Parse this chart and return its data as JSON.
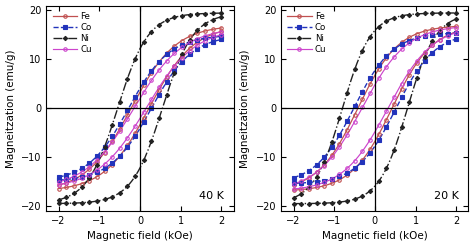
{
  "panel_labels": [
    "40 K",
    "20 K"
  ],
  "mat_order": [
    "Fe",
    "Co",
    "Ni",
    "Cu"
  ],
  "params": {
    "40 K": {
      "Fe": {
        "Hc": 0.22,
        "Ms": 17.0,
        "steep": 1.1,
        "n_upper": 0.85
      },
      "Co": {
        "Hc": 0.28,
        "Ms": 15.0,
        "steep": 1.0,
        "n_upper": 0.85
      },
      "Ni": {
        "Hc": 0.55,
        "Ms": 19.5,
        "steep": 0.75,
        "n_upper": 0.85
      },
      "Cu": {
        "Hc": 0.15,
        "Ms": 16.5,
        "steep": 1.2,
        "n_upper": 0.85
      }
    },
    "20 K": {
      "Fe": {
        "Hc": 0.42,
        "Ms": 17.0,
        "steep": 1.0,
        "n_upper": 0.85
      },
      "Co": {
        "Hc": 0.52,
        "Ms": 15.5,
        "steep": 0.95,
        "n_upper": 0.85
      },
      "Ni": {
        "Hc": 0.8,
        "Ms": 19.5,
        "steep": 0.7,
        "n_upper": 0.85
      },
      "Cu": {
        "Hc": 0.32,
        "Ms": 17.0,
        "steep": 1.1,
        "n_upper": 0.85
      }
    }
  },
  "mat_styles": {
    "Fe": {
      "color": "#c05050",
      "lw": 0.9,
      "marker": "o",
      "ms": 2.5,
      "ls": "-",
      "mfc": "none",
      "mew": 0.8,
      "dash": "none"
    },
    "Co": {
      "color": "#2233bb",
      "lw": 1.0,
      "marker": "s",
      "ms": 2.5,
      "ls": "--",
      "mfc": "#2233bb",
      "mew": 0.8,
      "dash": "--"
    },
    "Ni": {
      "color": "#222222",
      "lw": 1.0,
      "marker": "D",
      "ms": 2.2,
      "ls": "-.",
      "mfc": "#222222",
      "mew": 0.8,
      "dash": "-."
    },
    "Cu": {
      "color": "#cc44cc",
      "lw": 0.85,
      "marker": "o",
      "ms": 2.5,
      "ls": "-",
      "mfc": "none",
      "mew": 0.8,
      "dash": "none"
    }
  },
  "xlim": [
    -2.3,
    2.3
  ],
  "ylim": [
    -21,
    21
  ],
  "xlabel": "Magnetic field (kOe)",
  "ylabel": "Magneitzation (emu/g)",
  "xticks": [
    -2,
    -1,
    0,
    1,
    2
  ],
  "yticks": [
    -20,
    -10,
    0,
    10,
    20
  ],
  "bg_color": "#ffffff",
  "n_pts": 150,
  "n_markers": 22
}
